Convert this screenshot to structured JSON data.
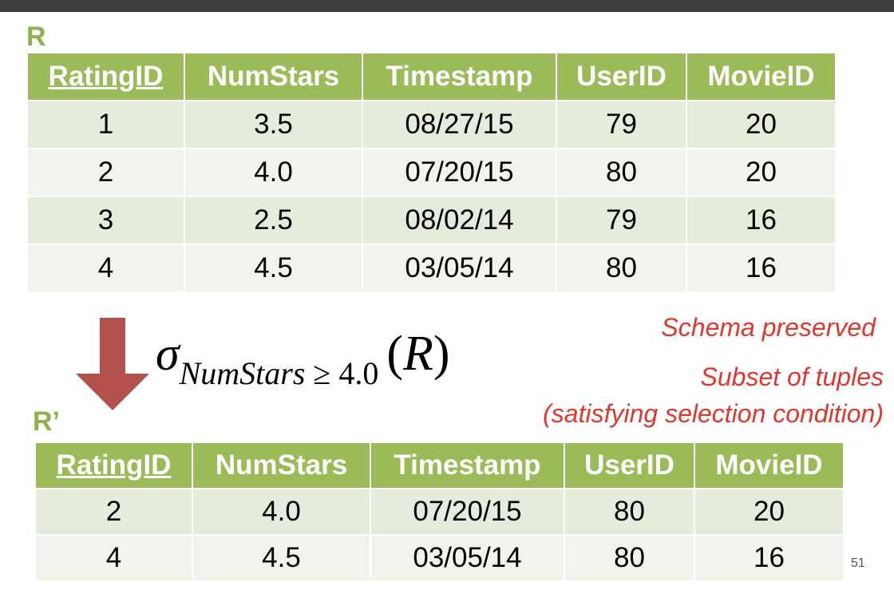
{
  "relation_r": {
    "label": "R",
    "headers": [
      "RatingID",
      "NumStars",
      "Timestamp",
      "UserID",
      "MovieID"
    ],
    "rows": [
      [
        "1",
        "3.5",
        "08/27/15",
        "79",
        "20"
      ],
      [
        "2",
        "4.0",
        "07/20/15",
        "80",
        "20"
      ],
      [
        "3",
        "2.5",
        "08/02/14",
        "79",
        "16"
      ],
      [
        "4",
        "4.5",
        "03/05/14",
        "80",
        "16"
      ]
    ]
  },
  "formula": {
    "sigma": "σ",
    "subscript_attr": "NumStars",
    "subscript_op": " ≥ ",
    "subscript_value": "4.0",
    "open_paren": "(",
    "argument": "R",
    "close_paren": ")"
  },
  "notes": {
    "schema": "Schema preserved",
    "subset": "Subset of tuples",
    "condition": "(satisfying selection condition)"
  },
  "relation_rp": {
    "label": "R’",
    "headers": [
      "RatingID",
      "NumStars",
      "Timestamp",
      "UserID",
      "MovieID"
    ],
    "rows": [
      [
        "2",
        "4.0",
        "07/20/15",
        "80",
        "20"
      ],
      [
        "4",
        "4.5",
        "03/05/14",
        "80",
        "16"
      ]
    ]
  },
  "page_number": "51",
  "colors": {
    "header_green": "#9bbb59",
    "label_green": "#8eb14e",
    "note_red": "#e0362c",
    "arrow_red": "#b3504e"
  },
  "icons": {
    "arrow": "down-arrow-icon"
  }
}
